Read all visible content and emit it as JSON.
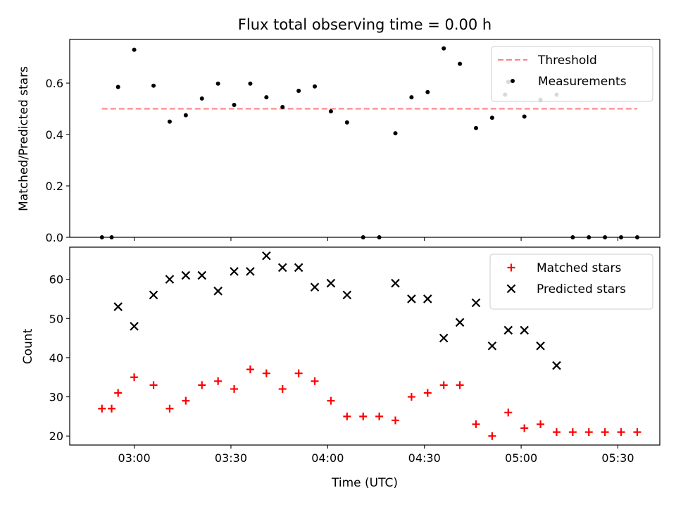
{
  "title": "Flux total observing time = 0.00 h",
  "chart_data": [
    {
      "type": "scatter",
      "panel": "top",
      "ylabel": "Matched/Predicted stars",
      "xlabel": "",
      "x_unit": "time (UTC)",
      "xlim": [
        "02:40",
        "05:43"
      ],
      "ylim": [
        0,
        0.77
      ],
      "yticks": [
        0.0,
        0.2,
        0.4,
        0.6
      ],
      "ytick_labels": [
        "0.0",
        "0.2",
        "0.4",
        "0.6"
      ],
      "grid": false,
      "legend_position": "top-right",
      "threshold": {
        "name": "Threshold",
        "value": 0.5,
        "x_start": "02:50",
        "x_end": "05:36",
        "color": "#ff7f7f",
        "style": "dashed"
      },
      "series": [
        {
          "name": "Measurements",
          "marker": "dot",
          "color": "#000000",
          "x": [
            "02:50",
            "02:53",
            "02:55",
            "03:00",
            "03:06",
            "03:11",
            "03:16",
            "03:21",
            "03:26",
            "03:31",
            "03:36",
            "03:41",
            "03:46",
            "03:51",
            "03:56",
            "04:01",
            "04:06",
            "04:11",
            "04:16",
            "04:21",
            "04:26",
            "04:31",
            "04:36",
            "04:41",
            "04:46",
            "04:51",
            "04:55",
            "04:56",
            "05:01",
            "05:06",
            "05:11",
            "05:16",
            "05:21",
            "05:26",
            "05:31",
            "05:36"
          ],
          "y": [
            0.0,
            0.0,
            0.585,
            0.73,
            0.59,
            0.45,
            0.475,
            0.54,
            0.598,
            0.515,
            0.598,
            0.545,
            0.507,
            0.57,
            0.587,
            0.49,
            0.447,
            0.0,
            0.0,
            0.405,
            0.545,
            0.565,
            0.735,
            0.675,
            0.425,
            0.465,
            0.555,
            0.605,
            0.47,
            0.535,
            0.555,
            0.0,
            0.0,
            0.0,
            0.0,
            0.0
          ]
        }
      ]
    },
    {
      "type": "scatter",
      "panel": "bottom",
      "ylabel": "Count",
      "xlabel": "Time (UTC)",
      "x_unit": "time (UTC)",
      "xlim": [
        "02:40",
        "05:43"
      ],
      "ylim": [
        17.7,
        68.2
      ],
      "yticks": [
        20,
        30,
        40,
        50,
        60
      ],
      "ytick_labels": [
        "20",
        "30",
        "40",
        "50",
        "60"
      ],
      "xticks": [
        "03:00",
        "03:30",
        "04:00",
        "04:30",
        "05:00",
        "05:30"
      ],
      "xtick_labels": [
        "03:00",
        "03:30",
        "04:00",
        "04:30",
        "05:00",
        "05:30"
      ],
      "grid": false,
      "legend_position": "top-right",
      "series": [
        {
          "name": "Matched stars",
          "marker": "plus",
          "color": "#ff0000",
          "x": [
            "02:50",
            "02:53",
            "02:55",
            "03:00",
            "03:06",
            "03:11",
            "03:16",
            "03:21",
            "03:26",
            "03:31",
            "03:36",
            "03:41",
            "03:46",
            "03:51",
            "03:56",
            "04:01",
            "04:06",
            "04:11",
            "04:16",
            "04:21",
            "04:26",
            "04:31",
            "04:36",
            "04:41",
            "04:46",
            "04:51",
            "04:56",
            "05:01",
            "05:06",
            "05:11",
            "05:16",
            "05:21",
            "05:26",
            "05:31",
            "05:36"
          ],
          "y": [
            27,
            27,
            31,
            35,
            33,
            27,
            29,
            33,
            34,
            32,
            37,
            36,
            32,
            36,
            34,
            29,
            25,
            25,
            25,
            24,
            30,
            31,
            33,
            33,
            23,
            20,
            26,
            22,
            23,
            21,
            21,
            21,
            21,
            21,
            21
          ]
        },
        {
          "name": "Predicted stars",
          "marker": "x",
          "color": "#000000",
          "x": [
            "02:55",
            "03:00",
            "03:06",
            "03:11",
            "03:16",
            "03:21",
            "03:26",
            "03:31",
            "03:36",
            "03:41",
            "03:46",
            "03:51",
            "03:56",
            "04:01",
            "04:06",
            "04:21",
            "04:26",
            "04:31",
            "04:36",
            "04:41",
            "04:46",
            "04:51",
            "04:56",
            "05:01",
            "05:06",
            "05:11"
          ],
          "y": [
            53,
            48,
            56,
            60,
            61,
            61,
            57,
            62,
            62,
            66,
            63,
            63,
            58,
            59,
            56,
            59,
            55,
            55,
            45,
            49,
            54,
            43,
            47,
            47,
            43,
            38
          ]
        }
      ]
    }
  ]
}
